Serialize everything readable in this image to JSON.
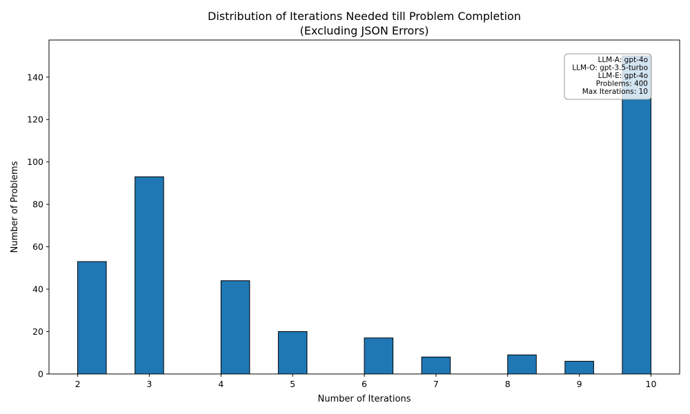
{
  "chart_data": {
    "type": "bar",
    "title": "Distribution of Iterations Needed till Problem Completion",
    "subtitle": "(Excluding JSON Errors)",
    "xlabel": "Number of Iterations",
    "ylabel": "Number of Problems",
    "xlim": [
      1.6,
      10.4
    ],
    "ylim": [
      0,
      157.5
    ],
    "xticks": [
      2,
      3,
      4,
      5,
      6,
      7,
      8,
      9,
      10
    ],
    "yticks": [
      0,
      20,
      40,
      60,
      80,
      100,
      120,
      140
    ],
    "bar_color": "#1f77b4",
    "bar_edge_color": "#000000",
    "bars": [
      {
        "x0": 2.0,
        "x1": 2.4,
        "value": 53
      },
      {
        "x0": 2.8,
        "x1": 3.2,
        "value": 93
      },
      {
        "x0": 4.0,
        "x1": 4.4,
        "value": 44
      },
      {
        "x0": 4.8,
        "x1": 5.2,
        "value": 20
      },
      {
        "x0": 6.0,
        "x1": 6.4,
        "value": 17
      },
      {
        "x0": 6.8,
        "x1": 7.2,
        "value": 8
      },
      {
        "x0": 8.0,
        "x1": 8.4,
        "value": 9
      },
      {
        "x0": 8.8,
        "x1": 9.2,
        "value": 6
      },
      {
        "x0": 9.6,
        "x1": 10.0,
        "value": 150
      }
    ],
    "legend_position": "top-right",
    "info_box": [
      "LLM-A: gpt-4o",
      "LLM-O: gpt-3.5-turbo",
      "LLM-E: gpt-4o",
      "Problems: 400",
      "Max Iterations: 10"
    ]
  }
}
